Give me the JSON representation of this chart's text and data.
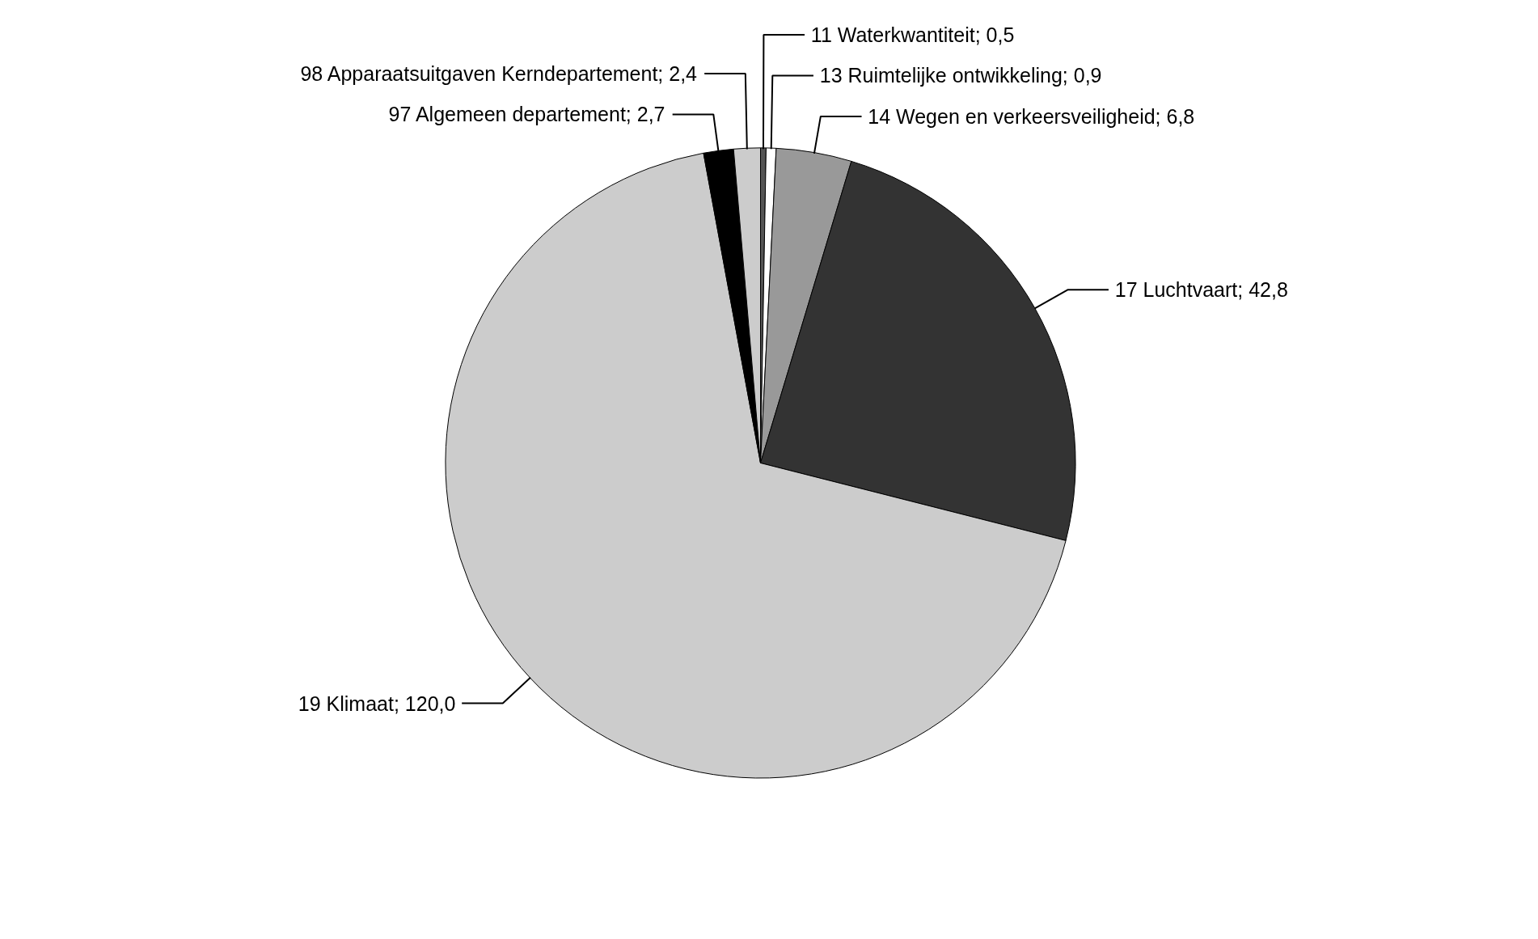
{
  "chart_data": {
    "type": "pie",
    "categories": [
      "11 Waterkwantiteit; 0,5",
      "13 Ruimtelijke ontwikkeling; 0,9",
      "14 Wegen en verkeersveiligheid; 6,8",
      "17 Luchtvaart; 42,8",
      "19 Klimaat; 120,0",
      "97 Algemeen departement; 2,7",
      "98 Apparaatsuitgaven Kerndepartement; 2,4"
    ],
    "values": [
      0.5,
      0.9,
      6.8,
      42.8,
      120.0,
      2.7,
      2.4
    ],
    "colors": [
      "#555555",
      "#ffffff",
      "#999999",
      "#333333",
      "#cccccc",
      "#000000",
      "#cccccc"
    ]
  }
}
